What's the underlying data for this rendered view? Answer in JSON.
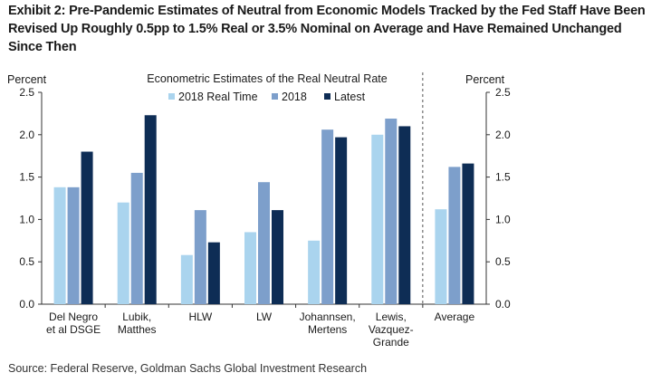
{
  "exhibit": {
    "title": "Exhibit 2: Pre-Pandemic Estimates of Neutral from Economic Models Tracked by the Fed Staff Have Been Revised Up Roughly 0.5pp to 1.5% Real or 3.5% Nominal on Average and Have Remained Unchanged Since Then",
    "source": "Source: Federal Reserve, Goldman Sachs Global Investment Research"
  },
  "colors": {
    "2018 Real Time": "#aad4ee",
    "2018": "#7d9fcb",
    "Latest": "#0e2d55"
  },
  "chart_data": {
    "type": "bar",
    "title": "Econometric Estimates of the Real Neutral Rate",
    "ylabel_left": "Percent",
    "ylabel_right": "Percent",
    "ylim": [
      0,
      2.5
    ],
    "yticks": [
      "0.0",
      "0.5",
      "1.0",
      "1.5",
      "2.0",
      "2.5"
    ],
    "categories": [
      [
        "Del Negro",
        "et al DSGE"
      ],
      [
        "Lubik,",
        "Matthes"
      ],
      [
        "HLW"
      ],
      [
        "LW"
      ],
      [
        "Johannsen,",
        "Mertens"
      ],
      [
        "Lewis,",
        "Vazquez-",
        "Grande"
      ],
      [
        "Average"
      ]
    ],
    "series": [
      {
        "name": "2018 Real Time",
        "values": [
          1.38,
          1.2,
          0.58,
          0.85,
          0.75,
          2.0,
          1.12
        ]
      },
      {
        "name": "2018",
        "values": [
          1.38,
          1.55,
          1.11,
          1.44,
          2.06,
          2.19,
          1.62
        ]
      },
      {
        "name": "Latest",
        "values": [
          1.8,
          2.23,
          0.73,
          1.11,
          1.97,
          2.1,
          1.66
        ]
      }
    ],
    "divider_before": "Average",
    "legend": "top-center"
  }
}
